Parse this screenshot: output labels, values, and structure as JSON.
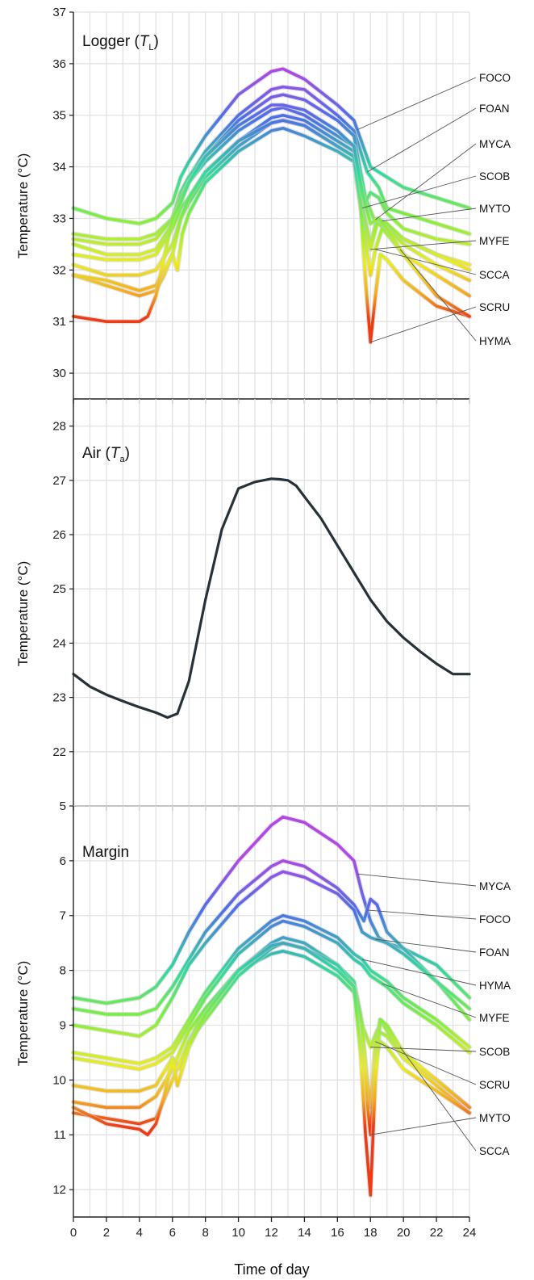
{
  "chart_data": [
    {
      "type": "line",
      "title": "Logger (T_L)",
      "title_main": "Logger (",
      "title_sym": "T",
      "title_sub": "L",
      "title_end": ")",
      "ylabel": "Temperature (°C)",
      "xlabel": "",
      "xlim": [
        0,
        24
      ],
      "ylim": [
        29.5,
        37
      ],
      "y_reversed": false,
      "yticks": [
        "30",
        "31",
        "32",
        "33",
        "34",
        "35",
        "36",
        "37"
      ],
      "grid": true,
      "color_scale": "rainbow",
      "labels": [
        "FOCO",
        "FOAN",
        "MYCA",
        "SCOB",
        "MYTO",
        "MYFE",
        "SCCA",
        "SCRU",
        "HYMA"
      ],
      "series": [
        {
          "name": "FOCO",
          "x": [
            0,
            2,
            4,
            5,
            6,
            6.5,
            7,
            8,
            10,
            12,
            12.7,
            14,
            16,
            17,
            18,
            19,
            20,
            22,
            24
          ],
          "y": [
            33.2,
            33.0,
            32.9,
            33.0,
            33.3,
            33.8,
            34.1,
            34.6,
            35.4,
            35.85,
            35.9,
            35.7,
            35.2,
            34.9,
            34.0,
            33.8,
            33.6,
            33.4,
            33.2
          ]
        },
        {
          "name": "FOAN",
          "x": [
            0,
            2,
            4,
            5,
            6,
            6.5,
            7,
            8,
            10,
            12,
            12.7,
            14,
            16,
            17,
            17.8,
            18.5,
            19,
            20,
            22,
            24
          ],
          "y": [
            32.7,
            32.6,
            32.6,
            32.7,
            33.0,
            33.5,
            33.8,
            34.3,
            35.0,
            35.5,
            35.55,
            35.5,
            35.0,
            34.7,
            33.9,
            33.6,
            33.2,
            33.1,
            32.9,
            32.7
          ]
        },
        {
          "name": "MYCA",
          "x": [
            0,
            2,
            4,
            5,
            6,
            6.5,
            7,
            8,
            10,
            12,
            12.7,
            14,
            16,
            17,
            17.7,
            18.2,
            18.6,
            19,
            20,
            22,
            24
          ],
          "y": [
            32.6,
            32.5,
            32.5,
            32.6,
            33.0,
            33.5,
            33.8,
            34.2,
            34.9,
            35.35,
            35.4,
            35.3,
            34.9,
            34.6,
            33.4,
            33.0,
            32.9,
            32.8,
            32.6,
            32.3,
            32.1
          ]
        },
        {
          "name": "SCOB",
          "x": [
            0,
            2,
            4,
            5,
            6,
            6.5,
            7,
            8,
            10,
            12,
            12.7,
            14,
            16,
            17,
            17.5,
            18,
            18.5,
            19,
            20,
            22,
            24
          ],
          "y": [
            32.5,
            32.3,
            32.3,
            32.4,
            32.9,
            33.4,
            33.7,
            34.1,
            34.7,
            35.1,
            35.15,
            35.0,
            34.6,
            34.4,
            33.2,
            33.5,
            33.4,
            33.1,
            32.8,
            32.6,
            32.5
          ]
        },
        {
          "name": "MYTO",
          "x": [
            0,
            2,
            4,
            5,
            6,
            6.5,
            7,
            8,
            10,
            12,
            12.7,
            14,
            16,
            17,
            17.6,
            18,
            18.4,
            19,
            20,
            22,
            24
          ],
          "y": [
            32.3,
            32.2,
            32.2,
            32.3,
            32.8,
            33.2,
            33.4,
            33.9,
            34.5,
            34.95,
            35.0,
            34.9,
            34.5,
            34.3,
            33.1,
            32.5,
            33.0,
            32.9,
            32.6,
            32.3,
            32.0
          ]
        },
        {
          "name": "MYFE",
          "x": [
            0,
            2,
            4,
            5,
            6,
            6.5,
            7,
            8,
            10,
            12,
            12.7,
            14,
            16,
            17,
            17.6,
            18,
            18.4,
            19,
            20,
            22,
            24
          ],
          "y": [
            32.1,
            31.9,
            31.9,
            32.0,
            32.5,
            33.0,
            33.3,
            33.8,
            34.4,
            34.85,
            34.9,
            34.8,
            34.4,
            34.2,
            33.0,
            32.4,
            32.9,
            32.8,
            32.5,
            32.1,
            31.8
          ]
        },
        {
          "name": "SCCA",
          "x": [
            0,
            2,
            4,
            5,
            5.5,
            6,
            6.3,
            6.6,
            7,
            8,
            10,
            12,
            12.7,
            14,
            16,
            17,
            17.5,
            18,
            18.3,
            18.7,
            19,
            20,
            22,
            24
          ],
          "y": [
            31.9,
            31.7,
            31.5,
            31.6,
            31.9,
            32.3,
            32.0,
            32.7,
            33.1,
            33.7,
            34.3,
            34.7,
            34.75,
            34.6,
            34.3,
            34.1,
            33.0,
            31.9,
            32.4,
            32.8,
            32.7,
            32.3,
            31.9,
            31.5
          ]
        },
        {
          "name": "SCRU",
          "x": [
            0,
            2,
            4,
            5,
            6,
            6.5,
            7,
            8,
            10,
            12,
            12.7,
            14,
            16,
            17,
            17.4,
            17.7,
            18,
            18.3,
            18.6,
            19,
            20,
            22,
            24
          ],
          "y": [
            31.9,
            31.8,
            31.6,
            31.7,
            32.3,
            33.0,
            33.4,
            33.9,
            34.5,
            34.85,
            34.9,
            34.8,
            34.4,
            34.2,
            33.3,
            31.8,
            30.6,
            31.5,
            32.3,
            32.2,
            31.8,
            31.3,
            31.1
          ]
        },
        {
          "name": "HYMA",
          "x": [
            0,
            2,
            3,
            4,
            4.5,
            5,
            5.6,
            6,
            6.5,
            7,
            8,
            10,
            12,
            12.7,
            14,
            16,
            17,
            17.5,
            18,
            18.5,
            19,
            20,
            22,
            24
          ],
          "y": [
            31.1,
            31.0,
            31.0,
            31.0,
            31.1,
            31.5,
            32.4,
            33.0,
            33.3,
            33.7,
            34.2,
            34.8,
            35.2,
            35.2,
            35.1,
            34.7,
            34.4,
            33.5,
            32.9,
            33.0,
            32.8,
            32.3,
            31.5,
            31.1
          ]
        }
      ]
    },
    {
      "type": "line",
      "title": "Air (T_a)",
      "title_main": "Air (",
      "title_sym": "T",
      "title_sub": "a",
      "title_end": ")",
      "ylabel": "Temperature (°C)",
      "xlabel": "",
      "xlim": [
        0,
        24
      ],
      "ylim": [
        21,
        28.5
      ],
      "y_reversed": false,
      "yticks": [
        "22",
        "23",
        "24",
        "25",
        "26",
        "27",
        "28"
      ],
      "grid": true,
      "color": "#263238",
      "series": [
        {
          "x": [
            0,
            1,
            2,
            3,
            4,
            5,
            5.7,
            6.3,
            7,
            8,
            9,
            10,
            11,
            11.5,
            12,
            12.5,
            13,
            13.5,
            14,
            15,
            16,
            17,
            18,
            19,
            20,
            21,
            22,
            23,
            24
          ],
          "y": [
            23.43,
            23.2,
            23.05,
            22.93,
            22.82,
            22.72,
            22.63,
            22.7,
            23.3,
            24.8,
            26.1,
            26.85,
            26.97,
            27.0,
            27.03,
            27.02,
            27.0,
            26.9,
            26.7,
            26.3,
            25.8,
            25.3,
            24.8,
            24.4,
            24.1,
            23.85,
            23.62,
            23.43,
            23.43
          ]
        }
      ]
    },
    {
      "type": "line",
      "title": "Margin",
      "ylabel": "Temperature (°C)",
      "xlabel": "Time of day",
      "xlim": [
        0,
        24
      ],
      "ylim": [
        12.5,
        5
      ],
      "y_reversed": true,
      "yticks": [
        "5",
        "6",
        "7",
        "8",
        "9",
        "10",
        "11",
        "12"
      ],
      "xticks": [
        "0",
        "2",
        "4",
        "6",
        "8",
        "10",
        "12",
        "14",
        "16",
        "18",
        "20",
        "22",
        "24"
      ],
      "grid": true,
      "color_scale": "rainbow",
      "labels": [
        "MYCA",
        "FOCO",
        "FOAN",
        "HYMA",
        "MYFE",
        "SCOB",
        "SCRU",
        "MYTO",
        "SCCA"
      ],
      "series": [
        {
          "name": "MYCA",
          "x": [
            0,
            2,
            4,
            5,
            6,
            7,
            8,
            10,
            12,
            12.7,
            14,
            16,
            17,
            17.5,
            18,
            18.5,
            19,
            20,
            22,
            24
          ],
          "y": [
            8.5,
            8.6,
            8.5,
            8.3,
            7.9,
            7.3,
            6.8,
            6.0,
            5.35,
            5.2,
            5.3,
            5.7,
            6.0,
            6.6,
            7.1,
            7.4,
            7.5,
            7.6,
            7.9,
            8.5
          ]
        },
        {
          "name": "FOCO",
          "x": [
            0,
            2,
            4,
            5,
            6,
            7,
            8,
            10,
            12,
            12.7,
            14,
            16,
            17,
            17.6,
            18,
            18.4,
            19,
            20,
            22,
            24
          ],
          "y": [
            8.7,
            8.8,
            8.8,
            8.7,
            8.3,
            7.8,
            7.3,
            6.6,
            6.1,
            6.0,
            6.1,
            6.5,
            6.8,
            7.1,
            6.7,
            6.8,
            7.3,
            7.6,
            8.2,
            8.9
          ]
        },
        {
          "name": "FOAN",
          "x": [
            0,
            2,
            4,
            5,
            6,
            7,
            8,
            10,
            12,
            12.7,
            14,
            16,
            17,
            17.5,
            18,
            19,
            20,
            22,
            24
          ],
          "y": [
            9.0,
            9.1,
            9.2,
            9.0,
            8.5,
            7.9,
            7.5,
            6.8,
            6.3,
            6.2,
            6.3,
            6.6,
            6.9,
            7.3,
            7.4,
            7.5,
            7.7,
            8.2,
            8.7
          ]
        },
        {
          "name": "HYMA",
          "x": [
            0,
            2,
            4,
            5,
            6,
            7,
            8,
            10,
            12,
            12.7,
            14,
            16,
            17,
            17.5,
            18,
            19,
            20,
            22,
            24
          ],
          "y": [
            9.5,
            9.6,
            9.7,
            9.6,
            9.4,
            8.9,
            8.4,
            7.6,
            7.1,
            7.0,
            7.1,
            7.4,
            7.7,
            7.8,
            8.0,
            8.2,
            8.5,
            8.9,
            9.4
          ]
        },
        {
          "name": "MYFE",
          "x": [
            0,
            2,
            4,
            5,
            6,
            7,
            8,
            10,
            12,
            12.7,
            14,
            16,
            17,
            17.5,
            18,
            19,
            20,
            22,
            24
          ],
          "y": [
            9.6,
            9.7,
            9.8,
            9.7,
            9.5,
            9.0,
            8.5,
            7.7,
            7.2,
            7.1,
            7.2,
            7.5,
            7.8,
            7.9,
            8.1,
            8.3,
            8.6,
            9.0,
            9.5
          ]
        },
        {
          "name": "SCOB",
          "x": [
            0,
            2,
            4,
            5,
            6,
            6.5,
            7,
            8,
            10,
            12,
            12.7,
            14,
            16,
            17,
            17.5,
            18,
            18.4,
            19,
            20,
            22,
            24
          ],
          "y": [
            10.1,
            10.2,
            10.2,
            10.1,
            9.6,
            9.8,
            9.3,
            8.7,
            8.0,
            7.7,
            7.65,
            7.75,
            8.1,
            8.4,
            9.0,
            9.4,
            9.1,
            9.2,
            9.6,
            10.0,
            10.5
          ]
        },
        {
          "name": "SCRU",
          "x": [
            0,
            2,
            4,
            5,
            6,
            7,
            8,
            10,
            12,
            12.7,
            14,
            16,
            17,
            17.4,
            17.7,
            18,
            18.3,
            18.6,
            19,
            20,
            22,
            24
          ],
          "y": [
            10.4,
            10.5,
            10.5,
            10.3,
            9.8,
            9.1,
            8.7,
            8.0,
            7.5,
            7.4,
            7.5,
            7.9,
            8.2,
            8.8,
            9.7,
            10.5,
            9.3,
            8.9,
            9.1,
            9.6,
            10.1,
            10.6
          ]
        },
        {
          "name": "MYTO",
          "x": [
            0,
            2,
            4,
            5,
            6,
            7,
            8,
            10,
            12,
            12.7,
            14,
            16,
            17,
            17.5,
            17.8,
            18,
            18.3,
            18.6,
            19,
            20,
            22,
            24
          ],
          "y": [
            10.6,
            10.7,
            10.8,
            10.7,
            10.0,
            9.3,
            8.9,
            8.1,
            7.6,
            7.5,
            7.6,
            7.9,
            8.3,
            9.0,
            10.4,
            11.0,
            9.6,
            9.3,
            9.4,
            9.8,
            10.2,
            10.6
          ]
        },
        {
          "name": "SCCA",
          "x": [
            0,
            2,
            4,
            4.5,
            5,
            5.5,
            6,
            6.3,
            7,
            8,
            10,
            12,
            12.7,
            14,
            16,
            17,
            17.4,
            17.7,
            18,
            18.3,
            18.6,
            19,
            20,
            22,
            24
          ],
          "y": [
            10.5,
            10.8,
            10.9,
            11.0,
            10.8,
            10.3,
            9.6,
            10.1,
            9.4,
            8.8,
            8.0,
            7.55,
            7.5,
            7.6,
            8.0,
            8.3,
            9.5,
            11.0,
            12.1,
            10.0,
            8.9,
            9.0,
            9.5,
            10.0,
            10.5
          ]
        }
      ]
    }
  ]
}
